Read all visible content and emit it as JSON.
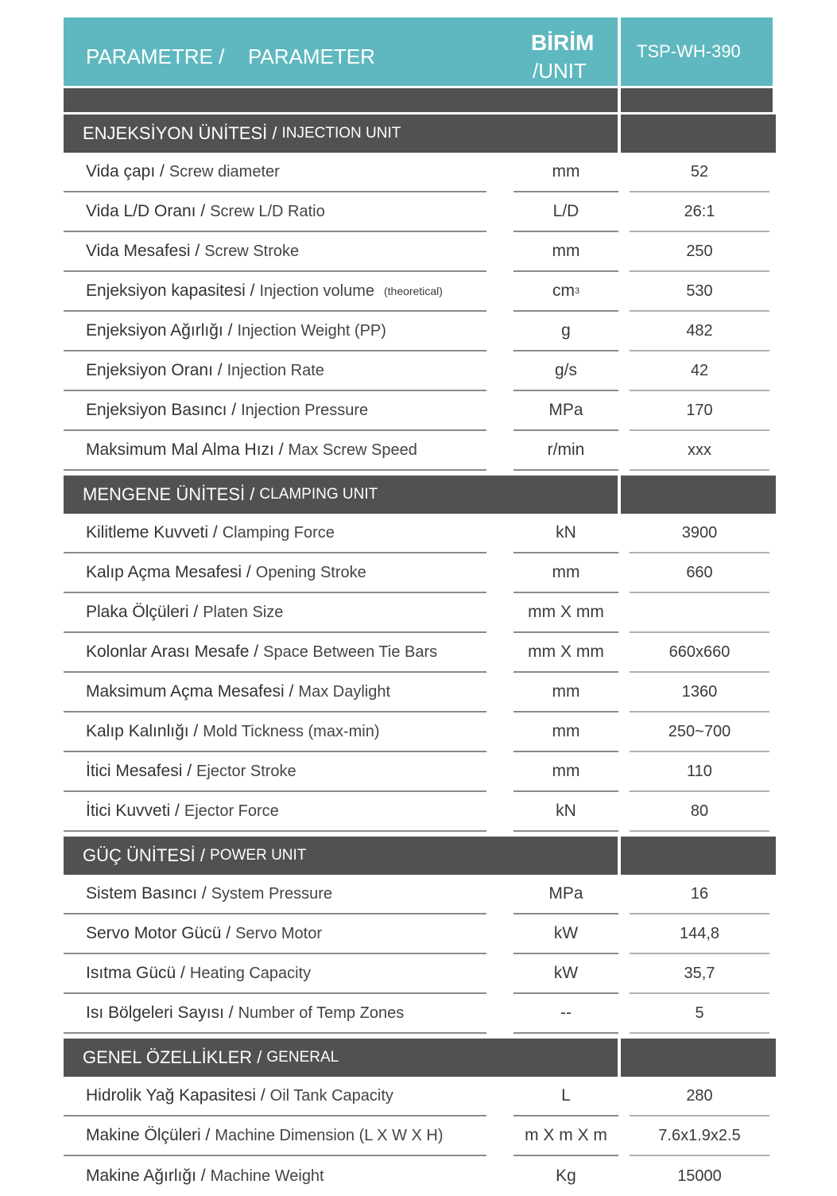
{
  "colors": {
    "header": "#5fb8bf",
    "section": "#525051"
  },
  "header": {
    "param_tr": "PARAMETRE /",
    "param_en": "PARAMETER",
    "unit_tr": "BİRİM",
    "unit_en": "/UNIT",
    "model": "TSP-WH-390"
  },
  "sections": [
    {
      "title_tr": "ENJEKSİYON ÜNİTESİ /",
      "title_en": "INJECTION UNIT",
      "rows": [
        {
          "tr": "Vida çapı /",
          "en": "Screw diameter",
          "unit": "mm",
          "value": "52"
        },
        {
          "tr": "Vida L/D Oranı /",
          "en": "Screw L/D Ratio",
          "unit": "L/D",
          "value": "26:1"
        },
        {
          "tr": "Vida Mesafesi /",
          "en": "Screw Stroke",
          "unit": "mm",
          "value": "250"
        },
        {
          "tr": "Enjeksiyon kapasitesi /",
          "en": "Injection volume",
          "note": "(theoretical)",
          "unit": "cm",
          "unit_sup": "3",
          "value": "530"
        },
        {
          "tr": "Enjeksiyon Ağırlığı /",
          "en": "Injection Weight (PP)",
          "unit": "g",
          "value": "482"
        },
        {
          "tr": "Enjeksiyon Oranı /",
          "en": "Injection Rate",
          "unit": "g/s",
          "value": "42"
        },
        {
          "tr": "Enjeksiyon Basıncı /",
          "en": "Injection Pressure",
          "unit": "MPa",
          "value": "170"
        },
        {
          "tr": "Maksimum Mal Alma Hızı /",
          "en": "Max Screw Speed",
          "unit": "r/min",
          "value": "xxx"
        }
      ]
    },
    {
      "title_tr": "MENGENE ÜNİTESİ /",
      "title_en": "CLAMPING UNIT",
      "rows": [
        {
          "tr": "Kilitleme Kuvveti /",
          "en": "Clamping Force",
          "unit": "kN",
          "value": "3900"
        },
        {
          "tr": "Kalıp Açma Mesafesi /",
          "en": "Opening Stroke",
          "unit": "mm",
          "value": "660"
        },
        {
          "tr": "Plaka Ölçüleri /",
          "en": "Platen Size",
          "unit": "mm X mm",
          "value": ""
        },
        {
          "tr": "Kolonlar Arası Mesafe /",
          "en": "Space Between Tie Bars",
          "unit": "mm X mm",
          "value": "660x660"
        },
        {
          "tr": "Maksimum Açma Mesafesi /",
          "en": "Max Daylight",
          "unit": "mm",
          "value": "1360"
        },
        {
          "tr": "Kalıp Kalınlığı /",
          "en": "Mold Tickness (max-min)",
          "unit": "mm",
          "value": "250~700"
        },
        {
          "tr": "İtici Mesafesi /",
          "en": "Ejector Stroke",
          "unit": "mm",
          "value": "110"
        },
        {
          "tr": "İtici Kuvveti /",
          "en": "Ejector Force",
          "unit": "kN",
          "value": "80"
        }
      ]
    },
    {
      "title_tr": "GÜÇ ÜNİTESİ /",
      "title_en": "POWER UNIT",
      "rows": [
        {
          "tr": "Sistem Basıncı /",
          "en": "System Pressure",
          "unit": "MPa",
          "value": "16"
        },
        {
          "tr": "Servo Motor Gücü /",
          "en": "Servo Motor",
          "unit": "kW",
          "value": "144,8"
        },
        {
          "tr": "Isıtma Gücü /",
          "en": "Heating Capacity",
          "unit": "kW",
          "value": "35,7"
        },
        {
          "tr": "Isı Bölgeleri Sayısı /",
          "en": "Number of Temp Zones",
          "unit": "--",
          "value": "5"
        }
      ]
    },
    {
      "title_tr": "GENEL ÖZELLİKLER /",
      "title_en": "GENERAL",
      "rows": [
        {
          "tr": "Hidrolik Yağ Kapasitesi /",
          "en": "Oil Tank Capacity",
          "unit": "L",
          "value": "280"
        },
        {
          "tr": "Makine Ölçüleri /",
          "en": "Machine Dimension (L X W X H)",
          "unit": "m X m X  m",
          "value": "7.6x1.9x2.5"
        },
        {
          "tr": "Makine Ağırlığı /",
          "en": "Machine Weight",
          "unit": "Kg",
          "value": "15000"
        }
      ]
    }
  ]
}
